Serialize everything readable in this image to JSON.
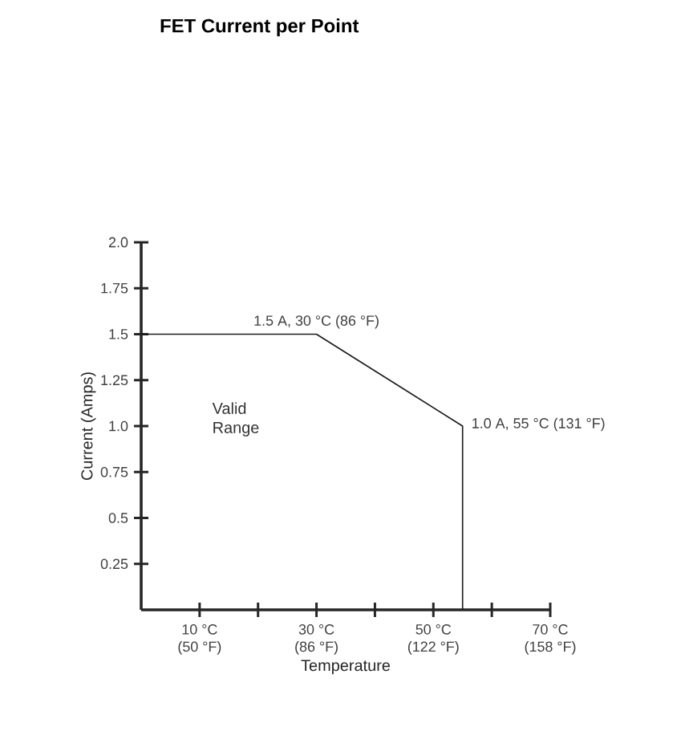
{
  "chart_data": {
    "type": "line",
    "title": "FET Current per Point",
    "xlabel": "Temperature",
    "ylabel": "Current (Amps)",
    "x": [
      0,
      30,
      55,
      55
    ],
    "series": [
      {
        "color": "#1a1a1a",
        "values": [
          1.5,
          1.5,
          1.0,
          0
        ]
      }
    ],
    "xlim": [
      0,
      70
    ],
    "ylim": [
      0,
      2
    ],
    "xticks": [
      {
        "value": 10,
        "label": "10 °C"
      },
      {
        "value": 20,
        "label": null
      },
      {
        "value": 30,
        "label": "30 °C"
      },
      {
        "value": 40,
        "label": null
      },
      {
        "value": 50,
        "label": "50 °C"
      },
      {
        "value": 60,
        "label": null
      },
      {
        "value": 70,
        "label": "70 °C"
      }
    ],
    "x2lim": [
      32,
      158
    ],
    "x2ticks": [
      {
        "value": 50,
        "label": "(50 °F)"
      },
      {
        "value": 86,
        "label": "(86 °F)"
      },
      {
        "value": 122,
        "label": "(122 °F)"
      },
      {
        "value": 158,
        "label": "(158 °F)"
      }
    ],
    "yticks": [
      0.25,
      0.5,
      0.75,
      {
        "value": 1,
        "label": "1.0"
      },
      1.25,
      1.5,
      1.75,
      {
        "value": 2,
        "label": "2.0"
      }
    ],
    "annotations": [
      {
        "text": "1.5 A, 30 °C (86 °F)",
        "x": 30,
        "y": 1.5
      },
      {
        "text": "1.0 A, 55 °C (131 °F)",
        "x": 55,
        "y": 1.0
      },
      "Valid Range"
    ],
    "line_style": "solid"
  }
}
